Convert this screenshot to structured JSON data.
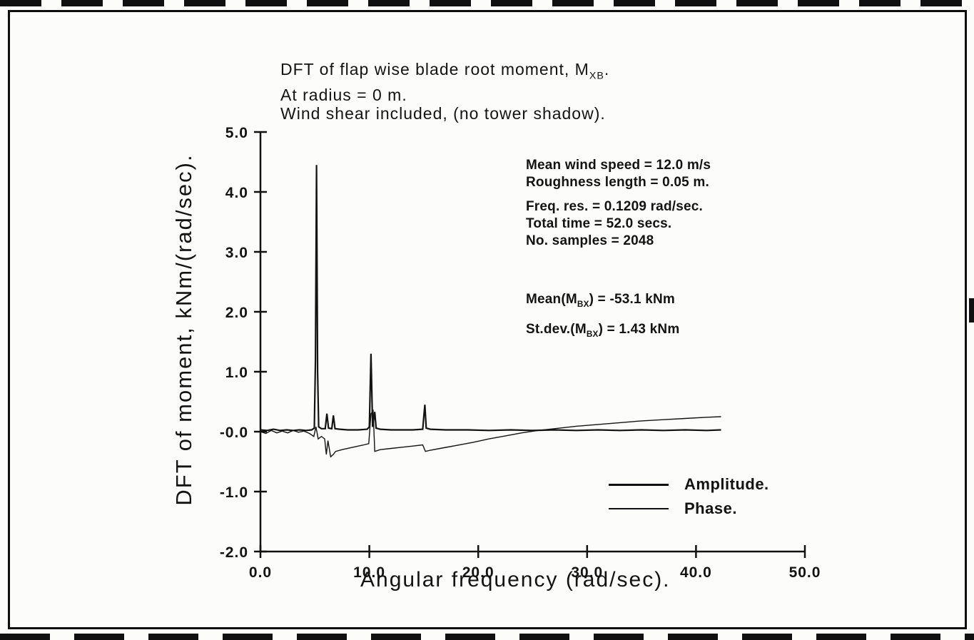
{
  "figure": {
    "title_lines": [
      {
        "pre": "DFT of flap wise blade root moment, M",
        "sub": "XB",
        "post": "."
      },
      {
        "pre": "At radius = 0 m.",
        "sub": "",
        "post": ""
      },
      {
        "pre": "Wind shear included, (no tower shadow).",
        "sub": "",
        "post": ""
      }
    ]
  },
  "annotations": {
    "block1": [
      "Mean wind speed = 12.0 m/s",
      "Roughness length = 0.05 m."
    ],
    "block2": [
      "Freq. res. = 0.1209 rad/sec.",
      "Total time = 52.0 secs.",
      "No. samples = 2048"
    ],
    "mean": {
      "pre": "Mean(M",
      "sub": "BX",
      "post": ") = -53.1 kNm"
    },
    "stdev": {
      "pre": "St.dev.(M",
      "sub": "BX",
      "post": ") = 1.43 kNm"
    }
  },
  "legend": {
    "items": [
      "Amplitude.",
      "Phase."
    ]
  },
  "chart_data": {
    "type": "line",
    "title": "DFT of flap wise blade root moment, M_XB. At radius = 0 m. Wind shear included, (no tower shadow).",
    "xlabel": "Angular frequency (rad/sec).",
    "ylabel": "DFT of moment, kNm/(rad/sec).",
    "xlim": [
      0,
      50
    ],
    "ylim": [
      -2,
      5
    ],
    "grid": false,
    "legend_position": "lower right inside",
    "x_ticks": [
      {
        "v": 0,
        "l": "0.0"
      },
      {
        "v": 10,
        "l": "10.0"
      },
      {
        "v": 20,
        "l": "20.0"
      },
      {
        "v": 30,
        "l": "30.0"
      },
      {
        "v": 40,
        "l": "40.0"
      },
      {
        "v": 50,
        "l": "50.0"
      }
    ],
    "y_ticks": [
      {
        "v": 5,
        "l": "5.0"
      },
      {
        "v": 4,
        "l": "4.0"
      },
      {
        "v": 3,
        "l": "3.0"
      },
      {
        "v": 2,
        "l": "2.0"
      },
      {
        "v": 1,
        "l": "1.0"
      },
      {
        "v": 0,
        "l": "-0.0"
      },
      {
        "v": -1,
        "l": "-1.0"
      },
      {
        "v": -2,
        "l": "-2.0"
      }
    ],
    "series": [
      {
        "name": "Amplitude",
        "points": [
          [
            0,
            0.03
          ],
          [
            0.6,
            0.02
          ],
          [
            1.2,
            0.04
          ],
          [
            1.8,
            0.02
          ],
          [
            2.4,
            0.03
          ],
          [
            3.0,
            0.02
          ],
          [
            3.6,
            0.03
          ],
          [
            4.2,
            0.02
          ],
          [
            4.7,
            0.03
          ],
          [
            4.95,
            0.06
          ],
          [
            5.05,
            1.2
          ],
          [
            5.15,
            4.45
          ],
          [
            5.25,
            1.0
          ],
          [
            5.35,
            0.08
          ],
          [
            5.6,
            0.05
          ],
          [
            5.95,
            0.05
          ],
          [
            6.1,
            0.3
          ],
          [
            6.25,
            0.06
          ],
          [
            6.55,
            0.05
          ],
          [
            6.7,
            0.27
          ],
          [
            6.85,
            0.05
          ],
          [
            7.3,
            0.04
          ],
          [
            8.0,
            0.03
          ],
          [
            9.0,
            0.03
          ],
          [
            9.8,
            0.04
          ],
          [
            10.0,
            0.08
          ],
          [
            10.15,
            1.3
          ],
          [
            10.3,
            0.08
          ],
          [
            10.5,
            0.33
          ],
          [
            10.62,
            0.06
          ],
          [
            11.0,
            0.04
          ],
          [
            12.0,
            0.03
          ],
          [
            13.0,
            0.03
          ],
          [
            14.0,
            0.03
          ],
          [
            14.9,
            0.04
          ],
          [
            15.1,
            0.45
          ],
          [
            15.22,
            0.06
          ],
          [
            15.6,
            0.04
          ],
          [
            17,
            0.03
          ],
          [
            19,
            0.03
          ],
          [
            21,
            0.02
          ],
          [
            23,
            0.03
          ],
          [
            25,
            0.02
          ],
          [
            27,
            0.03
          ],
          [
            29,
            0.02
          ],
          [
            31,
            0.03
          ],
          [
            33,
            0.02
          ],
          [
            35,
            0.03
          ],
          [
            37,
            0.02
          ],
          [
            39,
            0.03
          ],
          [
            41,
            0.02
          ],
          [
            42.3,
            0.03
          ]
        ]
      },
      {
        "name": "Phase",
        "points": [
          [
            0,
            0.0
          ],
          [
            0.5,
            -0.03
          ],
          [
            1.0,
            0.02
          ],
          [
            1.5,
            -0.02
          ],
          [
            2.0,
            0.01
          ],
          [
            2.5,
            -0.02
          ],
          [
            3.0,
            0.02
          ],
          [
            3.5,
            -0.01
          ],
          [
            4.0,
            0.01
          ],
          [
            4.5,
            -0.03
          ],
          [
            4.9,
            -0.08
          ],
          [
            5.1,
            0.08
          ],
          [
            5.3,
            -0.12
          ],
          [
            5.6,
            -0.08
          ],
          [
            5.9,
            -0.12
          ],
          [
            6.05,
            -0.38
          ],
          [
            6.2,
            -0.15
          ],
          [
            6.45,
            -0.42
          ],
          [
            6.7,
            -0.38
          ],
          [
            6.9,
            -0.33
          ],
          [
            7.5,
            -0.3
          ],
          [
            8.5,
            -0.26
          ],
          [
            9.5,
            -0.22
          ],
          [
            9.95,
            -0.2
          ],
          [
            10.15,
            0.3
          ],
          [
            10.35,
            0.35
          ],
          [
            10.5,
            -0.33
          ],
          [
            11,
            -0.3
          ],
          [
            12,
            -0.28
          ],
          [
            13,
            -0.26
          ],
          [
            14,
            -0.24
          ],
          [
            14.9,
            -0.22
          ],
          [
            15.15,
            -0.33
          ],
          [
            15.6,
            -0.31
          ],
          [
            16.5,
            -0.28
          ],
          [
            18,
            -0.23
          ],
          [
            19.5,
            -0.18
          ],
          [
            21,
            -0.12
          ],
          [
            22.5,
            -0.07
          ],
          [
            24,
            -0.02
          ],
          [
            25.5,
            0.02
          ],
          [
            27,
            0.05
          ],
          [
            29,
            0.09
          ],
          [
            31,
            0.12
          ],
          [
            33,
            0.15
          ],
          [
            35,
            0.18
          ],
          [
            37,
            0.2
          ],
          [
            39,
            0.22
          ],
          [
            41,
            0.24
          ],
          [
            42.3,
            0.25
          ]
        ]
      }
    ]
  }
}
